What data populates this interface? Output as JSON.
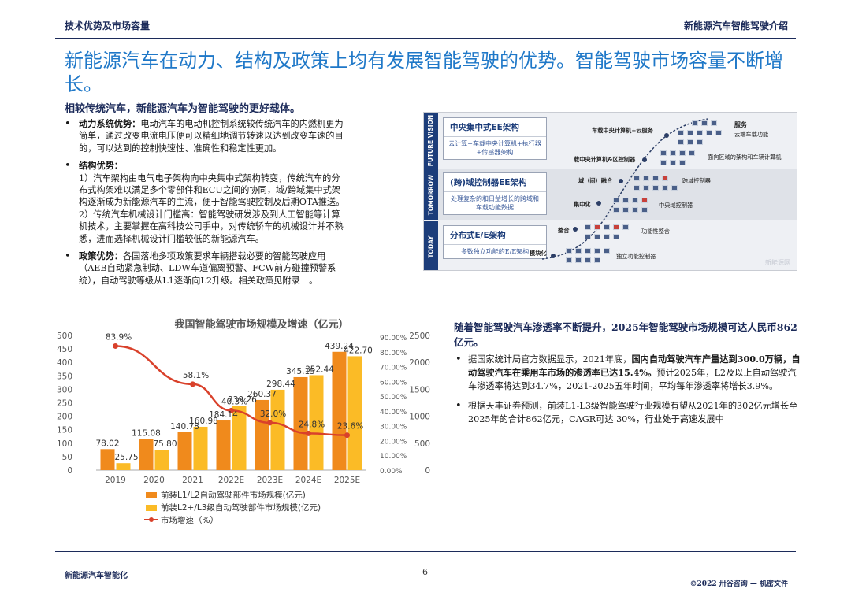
{
  "header": {
    "left": "技术优势及市场容量",
    "right": "新能源汽车智能驾驶介绍"
  },
  "title": "新能源汽车在动力、结构及政策上均有发展智能驾驶的优势。智能驾驶市场容量不断增长。",
  "subtitle": "相较传统汽车，新能源汽车为智能驾驶的更好载体。",
  "left_bullets": [
    {
      "label": "动力系统优势：",
      "lines": [
        "电动汽车的电动机控制系统较传统汽车的内燃机更为",
        "简单，通过改变电流电压便可以精细地调节转速以达到改变车速的目",
        "的，可以达到的控制快速性、准确性和稳定性更加。"
      ]
    },
    {
      "label": "结构优势：",
      "lines": [
        "",
        "1）汽车架构由电气电子架构向中央集中式架构转变，传统汽车的分",
        "布式构架难以满足多个零部件和ECU之间的协同，域/跨域集中式架",
        "构逐渐成为新能源汽车的主流，便于智能驾驶控制及后期OTA推送。",
        "2）传统汽车机械设计门槛高：智能驾驶研发涉及到人工智能等计算",
        "机技术，主要掌握在高科技公司手中，对传统轿车的机械设计并不熟",
        "悉，进而选择机械设计门槛较低的新能源汽车。"
      ]
    },
    {
      "label": "政策优势：",
      "lines": [
        "各国落地多项政策要求车辆搭载必要的智能驾驶应用",
        "（AEB自动紧急制动、LDW车道偏离预警、FCW前方碰撞预警系",
        "统），自动驾驶等级从L1逐渐向L2升级。相关政策见附录一。"
      ]
    }
  ],
  "arch": {
    "side": [
      "FUTURE VISION",
      "TOMORROW",
      "TODAY"
    ],
    "boxes": [
      {
        "title": "中央集中式EE架构",
        "desc": "云计算+车载中央计算机+执行器+传感器架构"
      },
      {
        "title": "(跨)域控制器EE架构",
        "desc": "处理复杂的和日益增长的跨域和车载功能数据"
      },
      {
        "title": "分布式E/E架构",
        "desc": "多数独立功能的E/E架构"
      }
    ],
    "labels": {
      "cloud_service": "车载中央计算机+云服务",
      "central_domain": "载中央计算机&区控制器",
      "domain_fusion": "域（间）融合",
      "centralize": "集中化",
      "integrate": "整合",
      "modular": "模块化",
      "service": "服务",
      "cloud_func": "云端车载功能",
      "zone_arch": "面向区域的架构和车辆计算机",
      "cross_domain": "跨域控制器",
      "central_domain_ctrl": "中央域控制器",
      "func_integration": "功能性整合",
      "independent_ctrl": "独立功能控制器",
      "watermark": "新能源网"
    }
  },
  "chart_data": {
    "type": "bar",
    "title": "我国智能驾驶市场规模及增速（亿元）",
    "categories": [
      "2019",
      "2020",
      "2021",
      "2022E",
      "2023E",
      "2024E",
      "2025E"
    ],
    "series": [
      {
        "name": "前装L1/L2自动驾驶部件市场规模(亿元)",
        "type": "bar",
        "axis": "left",
        "color": "#f08a1c",
        "values": [
          78.02,
          115.08,
          140.78,
          184.14,
          260.37,
          345.15,
          439.24
        ]
      },
      {
        "name": "前装L2+/L3级自动驾驶部件市场规模(亿元)",
        "type": "bar",
        "axis": "right",
        "color": "#fbbb26",
        "values": [
          25.75,
          75.8,
          160.98,
          239.26,
          298.44,
          352.44,
          422.7
        ]
      },
      {
        "name": "市场增速（%）",
        "type": "line",
        "color": "#d9412b",
        "values": [
          83.9,
          null,
          58.1,
          40.3,
          32.0,
          24.8,
          23.6
        ]
      }
    ],
    "labels": {
      "bar1": [
        "78.02",
        "115.08",
        "140.78",
        "184.14",
        "260.37",
        "345.15",
        "439.24"
      ],
      "bar2": [
        "25.75",
        "75.80",
        "160.98",
        "239.26",
        "298.44",
        "352.44",
        "422.70"
      ],
      "growth": [
        "83.9%",
        "",
        "58.1%",
        "40.3%",
        "32.0%",
        "24.8%",
        "23.6%"
      ]
    },
    "y_left_ticks": [
      "500",
      "450",
      "400",
      "350",
      "300",
      "250",
      "200",
      "150",
      "100",
      "50",
      "0"
    ],
    "y_pct_ticks": [
      "90.00%",
      "80.00%",
      "70.00%",
      "60.00%",
      "50.00%",
      "40.00%",
      "30.00%",
      "20.00%",
      "10.00%",
      "0.00%"
    ],
    "y_right_ticks": [
      "2500",
      "2000",
      "1500",
      "1000",
      "500",
      "0"
    ],
    "ylim_left": [
      0,
      500
    ],
    "ylim_pct": [
      0,
      90
    ],
    "ylim_right": [
      0,
      2500
    ],
    "legend_position": "bottom-left",
    "grid": false
  },
  "right": {
    "heading": "随着智能驾驶汽车渗透率不断提升，2025年智能驾驶市场规模可达人民币862亿元。",
    "bullets": [
      {
        "pre": "据国家统计局官方数据显示，2021年底，",
        "bold": "国内自动驾驶汽车产量达到300.0万辆，自动驾驶汽车在乘用车市场的渗透率已达15.4%。",
        "post": "预计2025年，L2及以上自动驾驶汽车渗透率将达到34.7%，2021-2025五年时间，平均每年渗透率将增长3.9%。"
      },
      {
        "pre": "根据天丰证券预测，前装L1-L3级智能驾驶行业规模有望从2021年的302亿元增长至2025年的合计862亿元，CAGR可达 30%，行业处于高速发展中",
        "bold": "",
        "post": ""
      }
    ]
  },
  "footer": {
    "left": "新能源汽车智能化",
    "page": "6",
    "right": "©2022 卅谷咨询 — 机密文件"
  }
}
